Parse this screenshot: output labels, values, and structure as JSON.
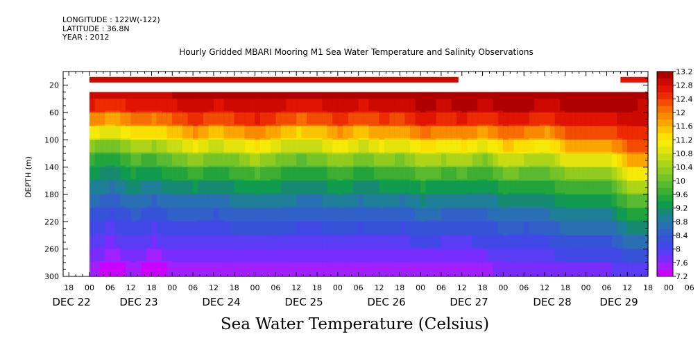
{
  "meta": {
    "longitude": "LONGITUDE : 122W(-122)",
    "latitude": "LATITUDE : 36.8N",
    "year": "YEAR : 2012"
  },
  "title": "Hourly Gridded MBARI Mooring M1 Sea Water Temperature and Salinity Observations",
  "footer_title": "Sea Water Temperature (Celsius)",
  "chart_data": {
    "type": "heatmap",
    "title": "Hourly Gridded MBARI Mooring M1 Sea Water Temperature and Salinity Observations",
    "xlabel": "",
    "ylabel": "DEPTH (m)",
    "x_hour_ticks": [
      "18",
      "00",
      "06",
      "12",
      "18",
      "00",
      "06",
      "12",
      "18",
      "00",
      "06",
      "12",
      "18",
      "00",
      "06",
      "12",
      "18",
      "00",
      "06",
      "12",
      "18",
      "00",
      "06",
      "12",
      "18",
      "00",
      "06",
      "12",
      "18",
      "00",
      "06",
      "12"
    ],
    "x_day_labels": [
      "DEC 22",
      "DEC 23",
      "DEC 24",
      "DEC 25",
      "DEC 26",
      "DEC 27",
      "DEC 28",
      "DEC 29"
    ],
    "y_ticks": [
      20,
      60,
      100,
      140,
      180,
      220,
      260,
      300
    ],
    "ylim": [
      300,
      0
    ],
    "colorbar": {
      "levels": [
        7.2,
        7.4,
        7.6,
        7.8,
        8,
        8.2,
        8.4,
        8.6,
        8.8,
        9,
        9.2,
        9.4,
        9.6,
        9.8,
        10,
        10.2,
        10.4,
        10.6,
        10.8,
        11,
        11.2,
        11.4,
        11.6,
        11.8,
        12,
        12.2,
        12.4,
        12.6,
        12.8,
        13,
        13.2
      ],
      "labels": [
        "13.2",
        "12.8",
        "12.4",
        "12",
        "11.6",
        "11.2",
        "10.8",
        "10.4",
        "10",
        "9.6",
        "9.2",
        "8.8",
        "8.4",
        "8",
        "7.6",
        "7.2"
      ],
      "colors": [
        "#cc00ff",
        "#a220ff",
        "#7a2cff",
        "#5a3cf5",
        "#4248e8",
        "#3652d8",
        "#3060c8",
        "#2a6eb4",
        "#1f7f98",
        "#168a70",
        "#109a50",
        "#22a43c",
        "#3cae34",
        "#58ba30",
        "#74c428",
        "#90cc20",
        "#acd418",
        "#c8dc14",
        "#e2e40c",
        "#f6ea08",
        "#fae000",
        "#fbc400",
        "#fba600",
        "#f98a00",
        "#f66e00",
        "#f24c00",
        "#ec2c00",
        "#e01400",
        "#cc0a00",
        "#ae0000"
      ]
    },
    "profile_x_hours": [
      0,
      6,
      12,
      18,
      24,
      30,
      36,
      42,
      48,
      54,
      60,
      66,
      72,
      78,
      84,
      90,
      96,
      102,
      108,
      114,
      120,
      126,
      132,
      138,
      144,
      150,
      156,
      162,
      168,
      174,
      176
    ],
    "profile_depths_m": [
      40,
      60,
      80,
      100,
      120,
      140,
      160,
      180,
      200,
      220,
      240,
      260,
      280,
      300
    ],
    "near_surface_band": {
      "depth_m": 12,
      "value": 13.2,
      "gaps_hours": [
        [
          107,
          154
        ]
      ]
    },
    "temperature_profiles": [
      [
        12.9,
        12.5,
        11.8,
        10.9,
        10.0,
        9.5,
        9.2,
        8.9,
        8.6,
        8.3,
        8.0,
        7.8,
        7.6,
        7.4
      ],
      [
        12.8,
        12.3,
        11.5,
        10.6,
        9.8,
        9.3,
        9.0,
        8.7,
        8.4,
        8.1,
        7.9,
        7.7,
        7.5,
        7.3
      ],
      [
        12.9,
        12.6,
        11.9,
        11.1,
        10.3,
        9.7,
        9.3,
        9.0,
        8.7,
        8.4,
        8.1,
        7.9,
        7.6,
        7.4
      ],
      [
        12.9,
        12.5,
        11.8,
        11.0,
        10.2,
        9.6,
        9.2,
        8.8,
        8.5,
        8.2,
        7.9,
        7.7,
        7.5,
        7.3
      ],
      [
        13.0,
        12.7,
        12.1,
        11.3,
        10.5,
        9.9,
        9.4,
        9.0,
        8.7,
        8.4,
        8.1,
        7.9,
        7.6,
        7.4
      ],
      [
        13.1,
        12.9,
        12.4,
        11.6,
        10.8,
        10.1,
        9.5,
        9.1,
        8.7,
        8.4,
        8.1,
        7.8,
        7.6,
        7.4
      ],
      [
        13.0,
        12.7,
        12.1,
        11.3,
        10.5,
        9.9,
        9.4,
        9.0,
        8.6,
        8.3,
        8.0,
        7.8,
        7.6,
        7.4
      ],
      [
        13.0,
        12.8,
        12.3,
        11.5,
        10.7,
        10.0,
        9.5,
        9.1,
        8.8,
        8.5,
        8.2,
        7.9,
        7.7,
        7.5
      ],
      [
        13.1,
        12.9,
        12.5,
        11.8,
        11.0,
        10.3,
        9.7,
        9.2,
        8.8,
        8.5,
        8.2,
        7.9,
        7.7,
        7.5
      ],
      [
        13.1,
        12.8,
        12.2,
        11.4,
        10.6,
        10.0,
        9.5,
        9.1,
        8.8,
        8.5,
        8.2,
        7.9,
        7.7,
        7.5
      ],
      [
        13.0,
        12.6,
        12.0,
        11.2,
        10.4,
        9.8,
        9.4,
        9.0,
        8.7,
        8.4,
        8.1,
        7.9,
        7.6,
        7.4
      ],
      [
        13.0,
        12.7,
        12.1,
        11.3,
        10.5,
        9.9,
        9.4,
        9.0,
        8.7,
        8.4,
        8.1,
        7.8,
        7.6,
        7.4
      ],
      [
        13.1,
        12.9,
        12.4,
        11.7,
        10.9,
        10.2,
        9.6,
        9.2,
        8.8,
        8.5,
        8.2,
        7.9,
        7.7,
        7.5
      ],
      [
        13.0,
        12.7,
        12.1,
        11.3,
        10.5,
        9.9,
        9.4,
        9.0,
        8.7,
        8.4,
        8.1,
        7.9,
        7.6,
        7.4
      ],
      [
        13.0,
        12.8,
        12.3,
        11.6,
        10.8,
        10.1,
        9.5,
        9.1,
        8.8,
        8.5,
        8.2,
        7.9,
        7.7,
        7.5
      ],
      [
        13.1,
        12.8,
        12.2,
        11.4,
        10.6,
        10.0,
        9.5,
        9.1,
        8.7,
        8.4,
        8.1,
        7.9,
        7.6,
        7.4
      ],
      [
        13.2,
        13.0,
        12.6,
        11.9,
        11.1,
        10.4,
        9.8,
        9.3,
        8.9,
        8.6,
        8.3,
        8.0,
        7.7,
        7.5
      ],
      [
        13.2,
        12.9,
        12.4,
        11.7,
        10.9,
        10.2,
        9.6,
        9.2,
        8.8,
        8.5,
        8.2,
        7.9,
        7.7,
        7.5
      ],
      [
        13.2,
        13.0,
        12.5,
        11.8,
        11.0,
        10.3,
        9.7,
        9.2,
        8.8,
        8.5,
        8.2,
        7.9,
        7.7,
        7.5
      ],
      [
        13.2,
        12.9,
        12.3,
        11.5,
        10.7,
        10.0,
        9.5,
        9.1,
        8.8,
        8.5,
        8.2,
        8.0,
        7.7,
        7.5
      ],
      [
        13.2,
        13.0,
        12.6,
        12.0,
        11.3,
        10.6,
        9.9,
        9.4,
        9.0,
        8.7,
        8.4,
        8.1,
        7.8,
        7.6
      ],
      [
        13.2,
        13.0,
        12.5,
        11.8,
        11.1,
        10.4,
        9.8,
        9.3,
        8.9,
        8.6,
        8.3,
        8.0,
        7.8,
        7.6
      ],
      [
        13.1,
        12.8,
        12.3,
        11.6,
        10.9,
        10.3,
        9.8,
        9.4,
        9.0,
        8.7,
        8.4,
        8.1,
        7.9,
        7.7
      ],
      [
        13.2,
        13.0,
        12.7,
        12.2,
        11.5,
        10.8,
        10.1,
        9.6,
        9.2,
        8.9,
        8.6,
        8.3,
        8.0,
        7.7
      ],
      [
        13.2,
        13.0,
        12.7,
        12.2,
        11.5,
        10.8,
        10.1,
        9.6,
        9.2,
        8.9,
        8.6,
        8.3,
        8.0,
        7.7
      ],
      [
        13.2,
        13.0,
        12.7,
        12.2,
        11.5,
        10.8,
        10.1,
        9.6,
        9.2,
        8.9,
        8.6,
        8.3,
        8.0,
        7.7
      ],
      [
        13.1,
        13.0,
        12.8,
        12.5,
        12.1,
        11.6,
        11.0,
        10.3,
        9.8,
        9.3,
        8.9,
        8.6,
        8.2,
        7.8
      ],
      [
        13.0,
        12.9,
        12.8,
        12.5,
        12.1,
        11.6,
        11.0,
        10.3,
        9.8,
        9.3,
        8.9,
        8.6,
        8.2,
        7.8
      ],
      [
        12.8,
        12.6,
        12.3,
        11.9,
        11.4,
        10.8,
        10.1,
        9.5,
        9.0,
        8.6,
        8.3,
        8.0,
        7.7,
        7.4
      ],
      [
        12.9,
        12.8,
        12.6,
        12.2,
        11.7,
        11.0,
        10.3,
        9.6,
        9.0,
        8.6,
        8.2,
        7.9,
        7.6,
        7.3
      ],
      [
        12.8,
        12.6,
        12.3,
        11.8,
        11.2,
        10.5,
        9.8,
        9.2,
        8.6,
        8.2,
        7.9,
        7.6,
        7.4,
        7.2
      ]
    ]
  }
}
